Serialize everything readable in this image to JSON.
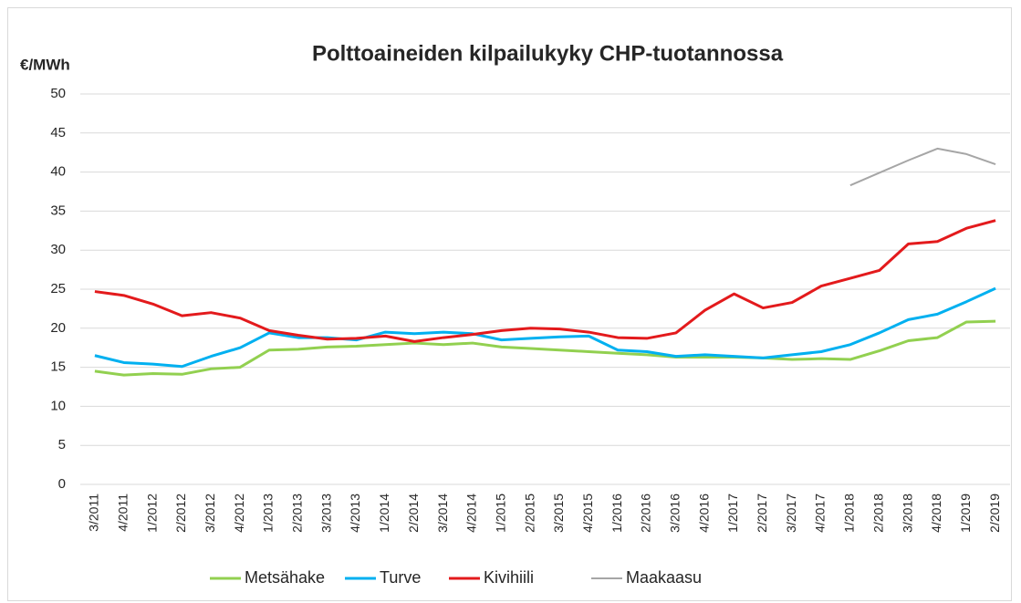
{
  "chart_data": {
    "type": "line",
    "title": "Polttoaineiden kilpailukyky CHP-tuotannossa",
    "y_label": "€/MWh",
    "categories": [
      "3/2011",
      "4/2011",
      "1/2012",
      "2/2012",
      "3/2012",
      "4/2012",
      "1/2013",
      "2/2013",
      "3/2013",
      "4/2013",
      "1/2014",
      "2/2014",
      "3/2014",
      "4/2014",
      "1/2015",
      "2/2015",
      "3/2015",
      "4/2015",
      "1/2016",
      "2/2016",
      "3/2016",
      "4/2016",
      "1/2017",
      "2/2017",
      "3/2017",
      "4/2017",
      "1/2018",
      "2/2018",
      "3/2018",
      "4/2018",
      "1/2019",
      "2/2019"
    ],
    "series": [
      {
        "name": "Metsähake",
        "color": "#92d050",
        "width": 3,
        "values": [
          14.5,
          14.0,
          14.2,
          14.1,
          14.8,
          15.0,
          17.2,
          17.3,
          17.6,
          17.7,
          17.9,
          18.1,
          17.9,
          18.1,
          17.6,
          17.4,
          17.2,
          17.0,
          16.8,
          16.6,
          16.3,
          16.3,
          16.3,
          16.2,
          16.0,
          16.1,
          16.0,
          17.1,
          18.4,
          18.8,
          20.8,
          20.9
        ]
      },
      {
        "name": "Turve",
        "color": "#00b0f0",
        "width": 3,
        "values": [
          16.5,
          15.6,
          15.4,
          15.1,
          16.4,
          17.5,
          19.4,
          18.8,
          18.8,
          18.5,
          19.5,
          19.3,
          19.5,
          19.3,
          18.5,
          18.7,
          18.9,
          19.0,
          17.2,
          17.0,
          16.4,
          16.6,
          16.4,
          16.2,
          16.6,
          17.0,
          17.9,
          19.4,
          21.1,
          21.8,
          23.4,
          25.1
        ]
      },
      {
        "name": "Kivihiili",
        "color": "#e31a1c",
        "width": 3,
        "values": [
          24.7,
          24.2,
          23.1,
          21.6,
          22.0,
          21.3,
          19.7,
          19.1,
          18.6,
          18.7,
          19.0,
          18.3,
          18.8,
          19.2,
          19.7,
          20.0,
          19.9,
          19.5,
          18.8,
          18.7,
          19.4,
          22.3,
          24.4,
          22.6,
          23.3,
          25.4,
          26.4,
          27.4,
          30.8,
          31.1,
          32.8,
          33.8
        ]
      },
      {
        "name": "Maakaasu",
        "color": "#a6a6a6",
        "width": 2,
        "values": [
          null,
          null,
          null,
          null,
          null,
          null,
          null,
          null,
          null,
          null,
          null,
          null,
          null,
          null,
          null,
          null,
          null,
          null,
          null,
          null,
          null,
          null,
          null,
          null,
          null,
          null,
          38.3,
          39.9,
          41.5,
          43.0,
          42.3,
          41.0
        ]
      }
    ],
    "ylim": [
      0,
      50
    ],
    "yticks": [
      0,
      5,
      10,
      15,
      20,
      25,
      30,
      35,
      40,
      45,
      50
    ],
    "grid": true
  }
}
